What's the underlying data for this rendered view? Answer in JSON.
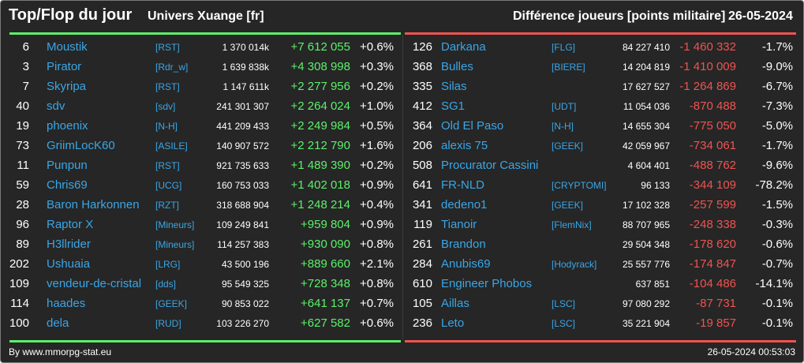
{
  "header": {
    "title": "Top/Flop du jour",
    "univers": "Univers Xuange [fr]",
    "metric": "Différence joueurs [points militaire]",
    "date": "26-05-2024"
  },
  "colors": {
    "up": "#5cf06a",
    "down": "#ef5350",
    "name": "#3aa6e6",
    "background": "#262626"
  },
  "top": [
    {
      "rank": "6",
      "name": "Moustik",
      "ally": "[RST]",
      "points": "1 370 014k",
      "delta": "+7 612 055",
      "pct": "+0.6%"
    },
    {
      "rank": "3",
      "name": "Pirator",
      "ally": "[Rdr_w]",
      "points": "1 639 838k",
      "delta": "+4 308 998",
      "pct": "+0.3%"
    },
    {
      "rank": "7",
      "name": "Skyripa",
      "ally": "[RST]",
      "points": "1 147 611k",
      "delta": "+2 277 956",
      "pct": "+0.2%"
    },
    {
      "rank": "40",
      "name": "sdv",
      "ally": "[sdv]",
      "points": "241 301 307",
      "delta": "+2 264 024",
      "pct": "+1.0%"
    },
    {
      "rank": "19",
      "name": "phoenix",
      "ally": "[N-H]",
      "points": "441 209 433",
      "delta": "+2 249 984",
      "pct": "+0.5%"
    },
    {
      "rank": "73",
      "name": "GriimLocK60",
      "ally": "[ASILE]",
      "points": "140 907 572",
      "delta": "+2 212 790",
      "pct": "+1.6%"
    },
    {
      "rank": "11",
      "name": "Punpun",
      "ally": "[RST]",
      "points": "921 735 633",
      "delta": "+1 489 390",
      "pct": "+0.2%"
    },
    {
      "rank": "59",
      "name": "Chris69",
      "ally": "[UCG]",
      "points": "160 753 033",
      "delta": "+1 402 018",
      "pct": "+0.9%"
    },
    {
      "rank": "28",
      "name": "Baron Harkonnen",
      "ally": "[RZT]",
      "points": "318 688 904",
      "delta": "+1 248 214",
      "pct": "+0.4%"
    },
    {
      "rank": "96",
      "name": "Raptor X",
      "ally": "[Mineurs]",
      "points": "109 249 841",
      "delta": "+959 804",
      "pct": "+0.9%"
    },
    {
      "rank": "89",
      "name": "H3llrider",
      "ally": "[Mineurs]",
      "points": "114 257 383",
      "delta": "+930 090",
      "pct": "+0.8%"
    },
    {
      "rank": "202",
      "name": "Ushuaia",
      "ally": "[LRG]",
      "points": "43 500 196",
      "delta": "+889 660",
      "pct": "+2.1%"
    },
    {
      "rank": "109",
      "name": "vendeur-de-cristal",
      "ally": "[dds]",
      "points": "95 549 325",
      "delta": "+728 348",
      "pct": "+0.8%"
    },
    {
      "rank": "114",
      "name": "haades",
      "ally": "[GEEK]",
      "points": "90 853 022",
      "delta": "+641 137",
      "pct": "+0.7%"
    },
    {
      "rank": "100",
      "name": "dela",
      "ally": "[RUD]",
      "points": "103 226 270",
      "delta": "+627 582",
      "pct": "+0.6%"
    }
  ],
  "flop": [
    {
      "rank": "126",
      "name": "Darkana",
      "ally": "[FLG]",
      "points": "84 227 410",
      "delta": "-1 460 332",
      "pct": "-1.7%"
    },
    {
      "rank": "368",
      "name": "Bulles",
      "ally": "[BIERE]",
      "points": "14 204 819",
      "delta": "-1 410 009",
      "pct": "-9.0%"
    },
    {
      "rank": "335",
      "name": "Silas",
      "ally": "",
      "points": "17 627 527",
      "delta": "-1 264 869",
      "pct": "-6.7%"
    },
    {
      "rank": "412",
      "name": "SG1",
      "ally": "[UDT]",
      "points": "11 054 036",
      "delta": "-870 488",
      "pct": "-7.3%"
    },
    {
      "rank": "364",
      "name": "Old El Paso",
      "ally": "[N-H]",
      "points": "14 655 304",
      "delta": "-775 050",
      "pct": "-5.0%"
    },
    {
      "rank": "206",
      "name": "alexis 75",
      "ally": "[GEEK]",
      "points": "42 059 967",
      "delta": "-734 061",
      "pct": "-1.7%"
    },
    {
      "rank": "508",
      "name": "Procurator Cassini",
      "ally": "",
      "points": "4 604 401",
      "delta": "-488 762",
      "pct": "-9.6%"
    },
    {
      "rank": "641",
      "name": "FR-NLD",
      "ally": "[CRYPTOMI]",
      "points": "96 133",
      "delta": "-344 109",
      "pct": "-78.2%"
    },
    {
      "rank": "341",
      "name": "dedeno1",
      "ally": "[GEEK]",
      "points": "17 102 328",
      "delta": "-257 599",
      "pct": "-1.5%"
    },
    {
      "rank": "119",
      "name": "Tianoir",
      "ally": "[FlemNix]",
      "points": "88 707 965",
      "delta": "-248 338",
      "pct": "-0.3%"
    },
    {
      "rank": "261",
      "name": "Brandon",
      "ally": "",
      "points": "29 504 348",
      "delta": "-178 620",
      "pct": "-0.6%"
    },
    {
      "rank": "284",
      "name": "Anubis69",
      "ally": "[Hodyrack]",
      "points": "25 557 776",
      "delta": "-174 847",
      "pct": "-0.7%"
    },
    {
      "rank": "610",
      "name": "Engineer Phobos",
      "ally": "",
      "points": "637 851",
      "delta": "-104 486",
      "pct": "-14.1%"
    },
    {
      "rank": "105",
      "name": "Aillas",
      "ally": "[LSC]",
      "points": "97 080 292",
      "delta": "-87 731",
      "pct": "-0.1%"
    },
    {
      "rank": "236",
      "name": "Leto",
      "ally": "[LSC]",
      "points": "35 221 904",
      "delta": "-19 857",
      "pct": "-0.1%"
    }
  ],
  "footer": {
    "source": "By www.mmorpg-stat.eu",
    "timestamp": "26-05-2024 00:53:03"
  }
}
